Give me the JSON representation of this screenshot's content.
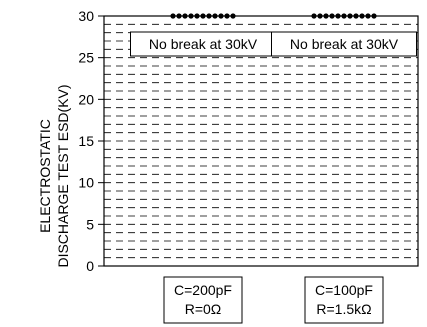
{
  "chart_data": {
    "type": "bar",
    "title": "",
    "ylabel_lines": [
      "ELECTROSTATIC",
      "DISCHARGE TEST ESD(KV)"
    ],
    "xlabel": "",
    "ylim": [
      0,
      30
    ],
    "yticks": [
      0,
      5,
      10,
      15,
      20,
      25,
      30
    ],
    "ytick_labels": [
      "0",
      "5",
      "10",
      "15",
      "20",
      "25",
      "30"
    ],
    "minor_gridline_step": 1,
    "grid": "dashed horizontal",
    "categories": [
      {
        "lines": [
          "C=200pF",
          "R=0Ω"
        ]
      },
      {
        "lines": [
          "C=100pF",
          "R=1.5kΩ"
        ]
      }
    ],
    "values": [
      30,
      30
    ],
    "marker": "dotted cluster at top",
    "annotations": [
      {
        "category_index": 0,
        "text": "No break at 30kV"
      },
      {
        "category_index": 1,
        "text": "No break at 30kV"
      }
    ]
  }
}
